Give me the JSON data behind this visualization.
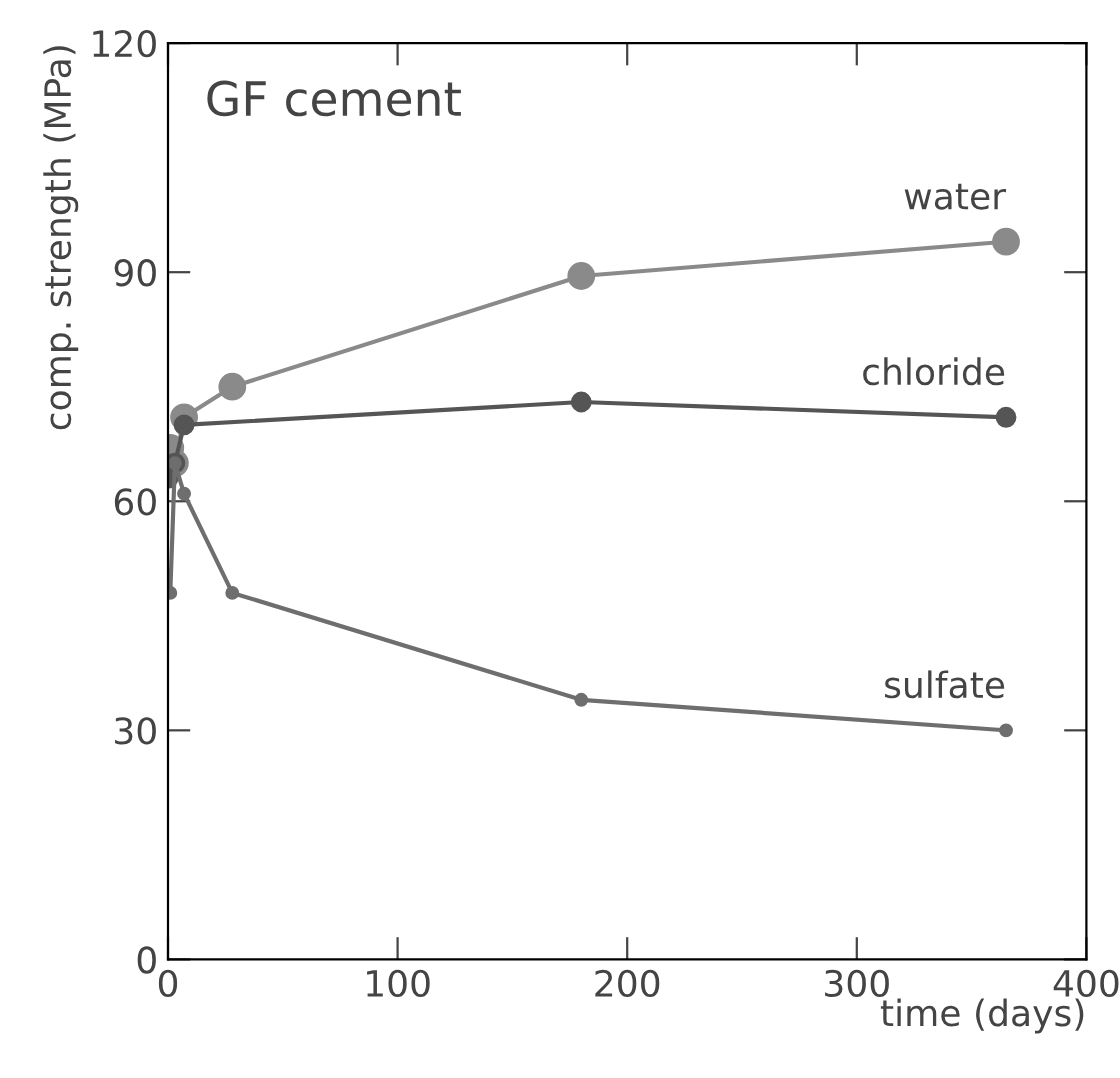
{
  "chart_data": {
    "type": "line",
    "title": "GF cement",
    "xlabel": "time (days)",
    "ylabel": "comp. strength (MPa)",
    "xlim": [
      0,
      400
    ],
    "ylim": [
      0,
      120
    ],
    "xticks": [
      0,
      100,
      200,
      300,
      400
    ],
    "yticks": [
      0,
      30,
      60,
      90,
      120
    ],
    "grid": false,
    "legend": false,
    "marker": "circle",
    "line_style": "solid",
    "series": [
      {
        "name": "water",
        "color": "#8a8a8a",
        "x": [
          1,
          3,
          7,
          28,
          180,
          365
        ],
        "values": [
          67,
          65,
          71,
          75,
          89.5,
          94
        ]
      },
      {
        "name": "chloride",
        "color": "#555555",
        "x": [
          0,
          3,
          7,
          180,
          365
        ],
        "values": [
          63,
          65,
          70,
          73,
          71
        ]
      },
      {
        "name": "sulfate",
        "color": "#6e6e6e",
        "x": [
          1,
          3,
          7,
          28,
          180,
          365
        ],
        "values": [
          48,
          65,
          61,
          48,
          34,
          30
        ]
      }
    ]
  }
}
